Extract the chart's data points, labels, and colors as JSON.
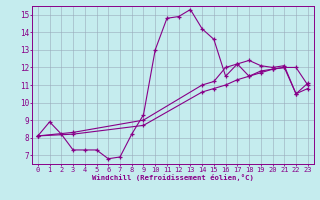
{
  "xlabel": "Windchill (Refroidissement éolien,°C)",
  "xlim": [
    -0.5,
    23.5
  ],
  "ylim": [
    6.5,
    15.5
  ],
  "yticks": [
    7,
    8,
    9,
    10,
    11,
    12,
    13,
    14,
    15
  ],
  "xticks": [
    0,
    1,
    2,
    3,
    4,
    5,
    6,
    7,
    8,
    9,
    10,
    11,
    12,
    13,
    14,
    15,
    16,
    17,
    18,
    19,
    20,
    21,
    22,
    23
  ],
  "bg_color": "#c5ecee",
  "line_color": "#880088",
  "grid_color": "#99aabb",
  "line1_x": [
    0,
    1,
    2,
    3,
    4,
    5,
    6,
    7,
    8,
    9,
    10,
    11,
    12,
    13,
    14,
    15,
    16,
    17,
    18,
    19,
    20,
    21,
    22,
    23
  ],
  "line1_y": [
    8.1,
    8.9,
    8.2,
    7.3,
    7.3,
    7.3,
    6.8,
    6.9,
    8.2,
    9.3,
    13.0,
    14.8,
    14.9,
    15.3,
    14.2,
    13.6,
    11.5,
    12.2,
    12.4,
    12.1,
    12.0,
    12.1,
    10.5,
    11.1
  ],
  "line2_x": [
    0,
    3,
    9,
    14,
    15,
    16,
    17,
    18,
    19,
    20,
    21,
    22,
    23
  ],
  "line2_y": [
    8.1,
    8.3,
    9.0,
    11.0,
    11.2,
    12.0,
    12.2,
    11.5,
    11.8,
    11.9,
    12.0,
    12.0,
    11.0
  ],
  "line3_x": [
    0,
    3,
    9,
    14,
    15,
    16,
    17,
    18,
    19,
    20,
    21,
    22,
    23
  ],
  "line3_y": [
    8.1,
    8.2,
    8.7,
    10.6,
    10.8,
    11.0,
    11.3,
    11.5,
    11.7,
    11.9,
    12.0,
    10.5,
    10.8
  ]
}
